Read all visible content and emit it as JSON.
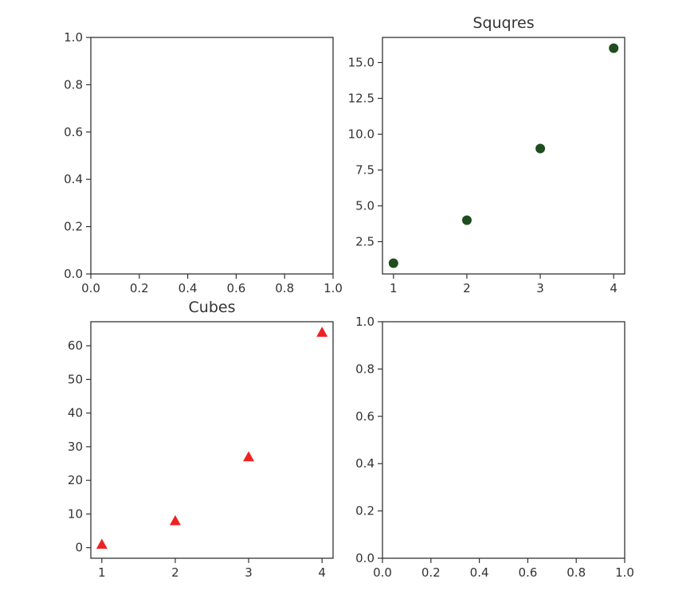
{
  "chart_data": [
    {
      "type": "empty",
      "title": "",
      "xlim": [
        0,
        1
      ],
      "ylim": [
        0,
        1
      ],
      "xticks": [
        0.0,
        0.2,
        0.4,
        0.6,
        0.8,
        1.0
      ],
      "yticks": [
        0.0,
        0.2,
        0.4,
        0.6,
        0.8,
        1.0
      ],
      "xtick_labels": [
        "0.0",
        "0.2",
        "0.4",
        "0.6",
        "0.8",
        "1.0"
      ],
      "ytick_labels": [
        "0.0",
        "0.2",
        "0.4",
        "0.6",
        "0.8",
        "1.0"
      ],
      "series": []
    },
    {
      "type": "scatter",
      "title": "Squqres",
      "xlim": [
        0.85,
        4.15
      ],
      "ylim": [
        0.25,
        16.75
      ],
      "xticks": [
        1,
        2,
        3,
        4
      ],
      "yticks": [
        2.5,
        5.0,
        7.5,
        10.0,
        12.5,
        15.0
      ],
      "xtick_labels": [
        "1",
        "2",
        "3",
        "4"
      ],
      "ytick_labels": [
        "2.5",
        "5.0",
        "7.5",
        "10.0",
        "12.5",
        "15.0"
      ],
      "series": [
        {
          "marker": "circle",
          "color": "#1f4d1f",
          "x": [
            1,
            2,
            3,
            4
          ],
          "y": [
            1,
            4,
            9,
            16
          ]
        }
      ]
    },
    {
      "type": "scatter",
      "title": "Cubes",
      "xlim": [
        0.85,
        4.15
      ],
      "ylim": [
        -3.15,
        67.15
      ],
      "xticks": [
        1,
        2,
        3,
        4
      ],
      "yticks": [
        0,
        10,
        20,
        30,
        40,
        50,
        60
      ],
      "xtick_labels": [
        "1",
        "2",
        "3",
        "4"
      ],
      "ytick_labels": [
        "0",
        "10",
        "20",
        "30",
        "40",
        "50",
        "60"
      ],
      "series": [
        {
          "marker": "triangle",
          "color": "#ee2222",
          "x": [
            1,
            2,
            3,
            4
          ],
          "y": [
            1,
            8,
            27,
            64
          ]
        }
      ]
    },
    {
      "type": "empty",
      "title": "",
      "xlim": [
        0,
        1
      ],
      "ylim": [
        0,
        1
      ],
      "xticks": [
        0.0,
        0.2,
        0.4,
        0.6,
        0.8,
        1.0
      ],
      "yticks": [
        0.0,
        0.2,
        0.4,
        0.6,
        0.8,
        1.0
      ],
      "xtick_labels": [
        "0.0",
        "0.2",
        "0.4",
        "0.6",
        "0.8",
        "1.0"
      ],
      "ytick_labels": [
        "0.0",
        "0.2",
        "0.4",
        "0.6",
        "0.8",
        "1.0"
      ],
      "series": []
    }
  ]
}
